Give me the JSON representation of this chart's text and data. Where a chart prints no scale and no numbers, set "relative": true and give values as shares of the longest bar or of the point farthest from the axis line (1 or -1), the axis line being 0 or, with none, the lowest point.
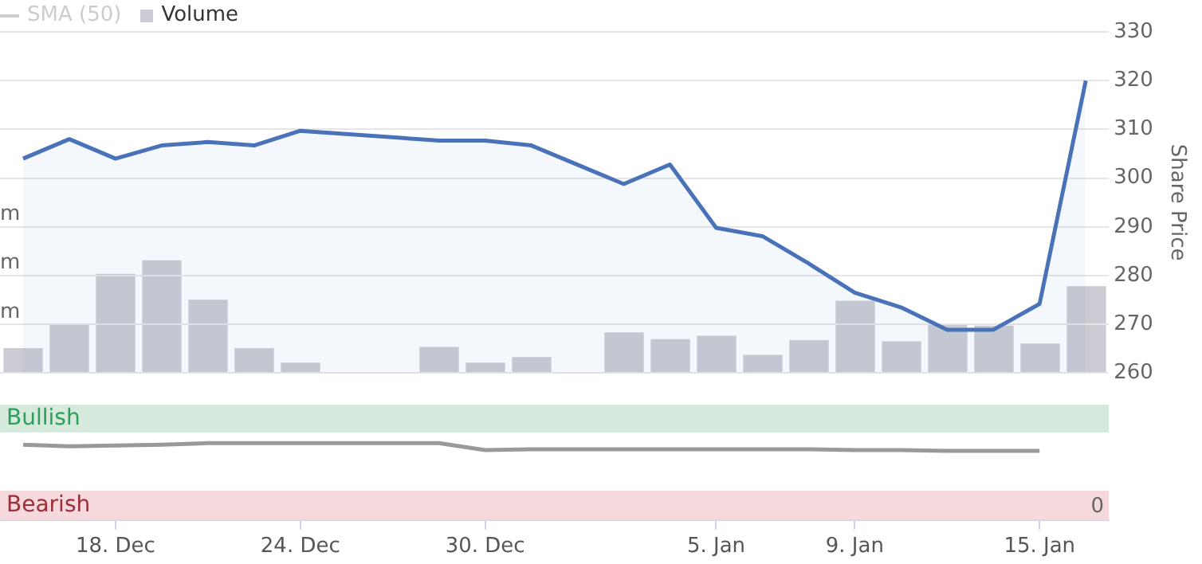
{
  "chart_data": [
    {
      "type": "area",
      "categories": [
        null,
        null,
        "18. Dec",
        null,
        null,
        null,
        "24. Dec",
        null,
        null,
        null,
        "30. Dec",
        null,
        null,
        null,
        null,
        "5. Jan",
        null,
        null,
        "9. Jan",
        null,
        null,
        null,
        "15. Jan",
        null
      ],
      "series": [
        {
          "color": "#4a72b8",
          "values": [
            304,
            308,
            304,
            306.7,
            307.4,
            306.7,
            309.7,
            null,
            null,
            307.7,
            307.7,
            306.7,
            null,
            298.8,
            302.8,
            289.8,
            288.1,
            282.5,
            276.5,
            273.5,
            268.9,
            268.9,
            274.2,
            320
          ]
        },
        {
          "name": "SMA (50)",
          "type": "line",
          "color": "#cccccc",
          "values": [
            null,
            null,
            null,
            null,
            null,
            null,
            null,
            null,
            null,
            null,
            null,
            null,
            null,
            null,
            null,
            null,
            null,
            null,
            null,
            null,
            null,
            null,
            null,
            null
          ]
        }
      ],
      "ylabel": "Share Price",
      "ylim": [
        260,
        330
      ],
      "yticks": [
        260,
        270,
        280,
        290,
        300,
        310,
        320,
        330
      ],
      "grid": "y",
      "legend": "top left",
      "tick_labels": "y",
      "marker": "none"
    },
    {
      "type": "bar",
      "categories": [
        null,
        null,
        "18. Dec",
        null,
        null,
        null,
        "24. Dec",
        null,
        null,
        null,
        "30. Dec",
        null,
        null,
        null,
        null,
        "5. Jan",
        null,
        null,
        "9. Jan",
        null,
        null,
        null,
        "15. Jan",
        null
      ],
      "series": [
        {
          "name": "Volume",
          "color": "#cbccd3",
          "values": [
            0.22,
            0.43,
            0.88,
            1,
            0.65,
            0.22,
            0.09,
            null,
            null,
            0.23,
            0.09,
            0.14,
            null,
            0.36,
            0.3,
            0.33,
            0.16,
            0.29,
            0.64,
            0.28,
            0.43,
            0.42,
            0.26,
            0.77
          ]
        }
      ],
      "relative": true,
      "legend": "top left",
      "tick_labels": false,
      "annotations": [
        "m",
        "m",
        "m"
      ]
    },
    {
      "type": "line",
      "categories": [
        null,
        null,
        "18. Dec",
        null,
        null,
        null,
        "24. Dec",
        null,
        null,
        null,
        "30. Dec",
        null,
        null,
        null,
        null,
        "5. Jan",
        null,
        null,
        "9. Jan",
        null,
        null,
        null,
        "15. Jan",
        null
      ],
      "color": "#999999",
      "values": [
        0.98,
        0.96,
        0.97,
        0.98,
        1,
        1,
        1,
        1,
        1,
        1,
        0.91,
        0.92,
        0.92,
        0.92,
        0.92,
        0.92,
        0.92,
        0.92,
        0.91,
        0.91,
        0.9,
        0.9,
        0.9,
        null
      ],
      "relative": true,
      "tick_labels": "x",
      "marker": "none",
      "bands": [
        {
          "axis": "y",
          "from": 1.14,
          "to": 1.5,
          "label": "Bullish",
          "color": "#d5e9dd"
        },
        {
          "axis": "y",
          "from": 0,
          "to": 0.38,
          "label": "Bearish",
          "color": "#f6d9dc"
        }
      ],
      "annotations": [
        "0"
      ]
    }
  ]
}
